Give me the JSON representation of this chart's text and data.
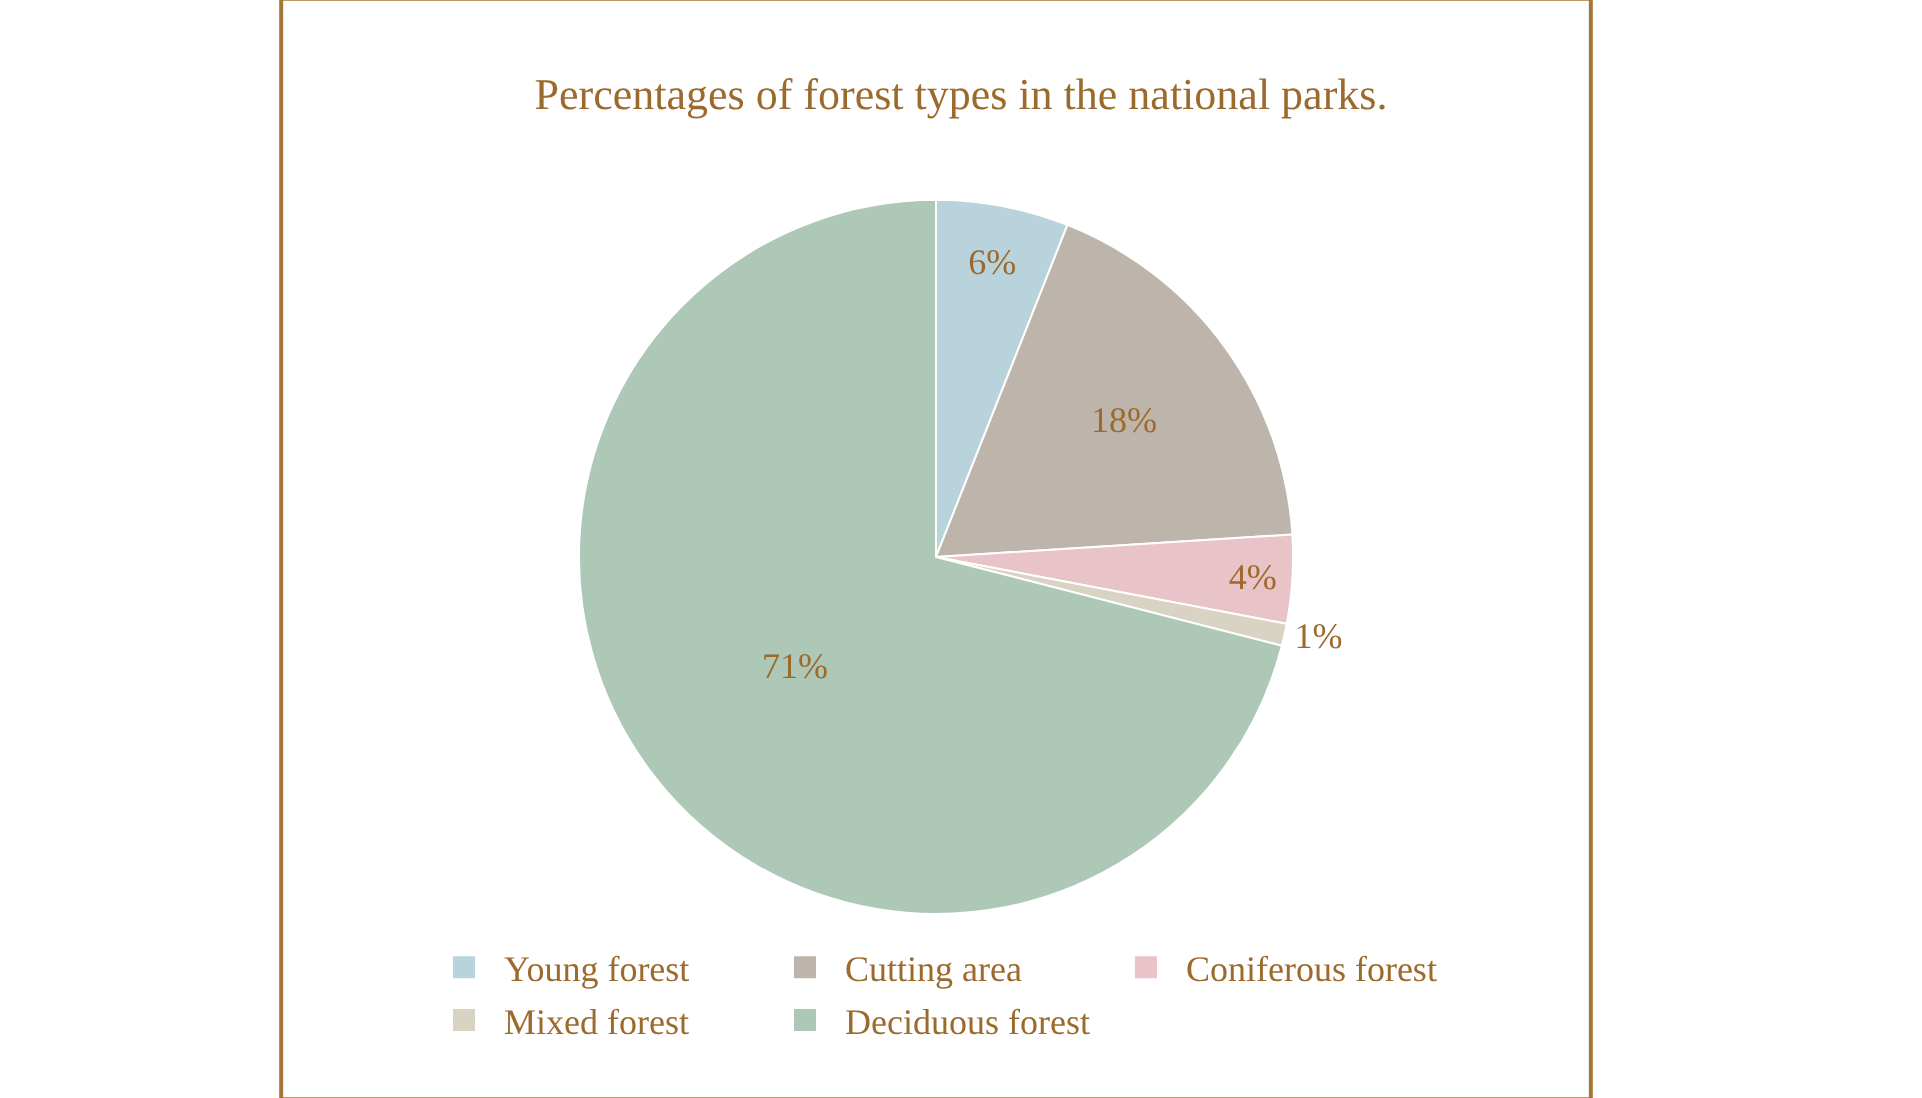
{
  "chart_data": {
    "type": "pie",
    "title": "Percentages of forest types in the national parks.",
    "categories": [
      "Young forest",
      "Cutting area",
      "Coniferous forest",
      "Mixed forest",
      "Deciduous forest"
    ],
    "values": [
      6,
      18,
      4,
      1,
      71
    ],
    "colors": [
      "#b9d3dc",
      "#bdb5ab",
      "#e8c3c8",
      "#d9d3c3",
      "#adc8b7"
    ],
    "value_labels": [
      "6%",
      "18%",
      "4%",
      "1%",
      "71%"
    ],
    "legend": "bottom"
  }
}
